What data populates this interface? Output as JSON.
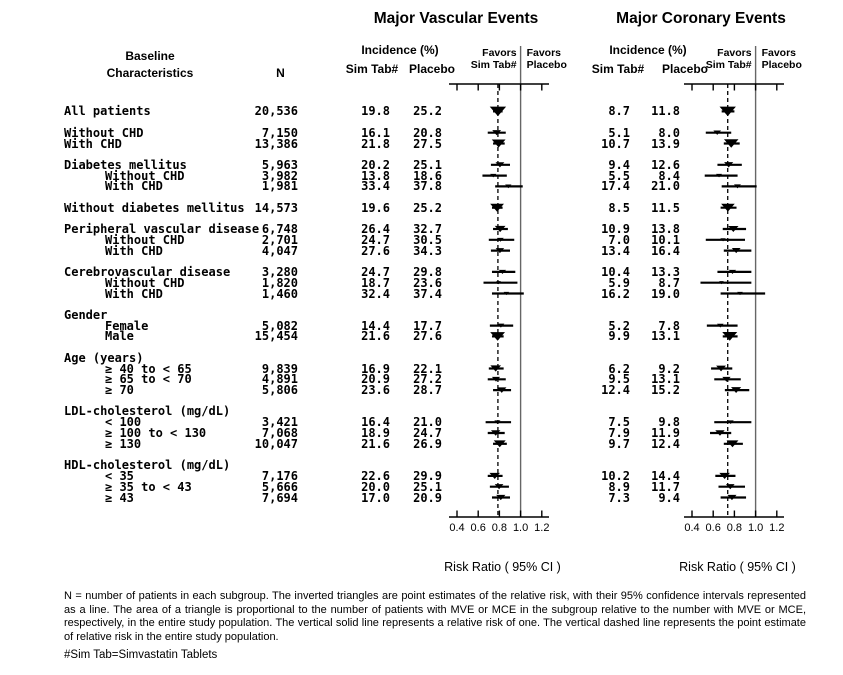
{
  "titles": {
    "vascular": "Major Vascular Events",
    "coronary": "Major Coronary Events"
  },
  "column_headers": {
    "baseline_line1": "Baseline",
    "baseline_line2": "Characteristics",
    "n": "N",
    "incidence": "Incidence (%)",
    "sim_tab": "Sim Tab#",
    "placebo": "Placebo",
    "favors": "Favors"
  },
  "colors": {
    "text": "#000000",
    "reference_line": "#666666",
    "marks": "#000000"
  },
  "chart_data": {
    "type": "forest",
    "plots": [
      "Major Vascular Events",
      "Major Coronary Events"
    ],
    "axis": {
      "xlim": [
        0.4,
        1.2
      ],
      "tick_values": [
        0.4,
        0.6,
        0.8,
        1.0,
        1.2
      ],
      "tick_labels": [
        "0.4",
        "0.6",
        "0.8",
        "1.0",
        "1.2"
      ],
      "xlabel": "Risk Ratio ( 95% CI )",
      "solid_reference": 1.0,
      "overall_rr": {
        "vascular": 0.786,
        "coronary": 0.737
      }
    },
    "groups": [
      {
        "rows": [
          {
            "label": "All patients",
            "indent": 0,
            "n": "20,536",
            "vascular": {
              "sim": "19.8",
              "pbo": "25.2",
              "rr": 0.786,
              "ci": [
                0.74,
                0.83
              ],
              "weight": 1.0
            },
            "coronary": {
              "sim": "8.7",
              "pbo": "11.8",
              "rr": 0.737,
              "ci": [
                0.68,
                0.8
              ],
              "weight": 1.0
            }
          }
        ]
      },
      {
        "rows": [
          {
            "label": "Without CHD",
            "indent": 0,
            "n": "7,150",
            "vascular": {
              "sim": "16.1",
              "pbo": "20.8",
              "rr": 0.774,
              "ci": [
                0.69,
                0.86
              ],
              "weight": 0.29
            },
            "coronary": {
              "sim": "5.1",
              "pbo": "8.0",
              "rr": 0.638,
              "ci": [
                0.53,
                0.77
              ],
              "weight": 0.22
            }
          },
          {
            "label": "With CHD",
            "indent": 0,
            "n": "13,386",
            "vascular": {
              "sim": "21.8",
              "pbo": "27.5",
              "rr": 0.793,
              "ci": [
                0.74,
                0.85
              ],
              "weight": 0.71
            },
            "coronary": {
              "sim": "10.7",
              "pbo": "13.9",
              "rr": 0.77,
              "ci": [
                0.7,
                0.85
              ],
              "weight": 0.78
            }
          }
        ]
      },
      {
        "rows": [
          {
            "label": "Diabetes mellitus",
            "indent": 0,
            "n": "5,963",
            "vascular": {
              "sim": "20.2",
              "pbo": "25.1",
              "rr": 0.805,
              "ci": [
                0.72,
                0.9
              ],
              "weight": 0.29
            },
            "coronary": {
              "sim": "9.4",
              "pbo": "12.6",
              "rr": 0.746,
              "ci": [
                0.64,
                0.87
              ],
              "weight": 0.31
            }
          },
          {
            "label": "Without CHD",
            "indent": 1,
            "n": "3,982",
            "vascular": {
              "sim": "13.8",
              "pbo": "18.6",
              "rr": 0.742,
              "ci": [
                0.64,
                0.87
              ],
              "weight": 0.14
            },
            "coronary": {
              "sim": "5.5",
              "pbo": "8.4",
              "rr": 0.655,
              "ci": [
                0.52,
                0.83
              ],
              "weight": 0.13
            }
          },
          {
            "label": "With CHD",
            "indent": 1,
            "n": "1,981",
            "vascular": {
              "sim": "33.4",
              "pbo": "37.8",
              "rr": 0.884,
              "ci": [
                0.76,
                1.02
              ],
              "weight": 0.15
            },
            "coronary": {
              "sim": "17.4",
              "pbo": "21.0",
              "rr": 0.829,
              "ci": [
                0.68,
                1.01
              ],
              "weight": 0.18
            }
          }
        ]
      },
      {
        "rows": [
          {
            "label": "Without diabetes mellitus",
            "indent": 0,
            "n": "14,573",
            "vascular": {
              "sim": "19.6",
              "pbo": "25.2",
              "rr": 0.778,
              "ci": [
                0.73,
                0.83
              ],
              "weight": 0.71
            },
            "coronary": {
              "sim": "8.5",
              "pbo": "11.5",
              "rr": 0.739,
              "ci": [
                0.67,
                0.82
              ],
              "weight": 0.69
            }
          }
        ]
      },
      {
        "rows": [
          {
            "label": "Peripheral vascular disease",
            "indent": 0,
            "n": "6,748",
            "vascular": {
              "sim": "26.4",
              "pbo": "32.7",
              "rr": 0.807,
              "ci": [
                0.74,
                0.88
              ],
              "weight": 0.43
            },
            "coronary": {
              "sim": "10.9",
              "pbo": "13.8",
              "rr": 0.79,
              "ci": [
                0.69,
                0.91
              ],
              "weight": 0.4
            }
          },
          {
            "label": "Without CHD",
            "indent": 1,
            "n": "2,701",
            "vascular": {
              "sim": "24.7",
              "pbo": "30.5",
              "rr": 0.81,
              "ci": [
                0.7,
                0.94
              ],
              "weight": 0.16
            },
            "coronary": {
              "sim": "7.0",
              "pbo": "10.1",
              "rr": 0.693,
              "ci": [
                0.53,
                0.9
              ],
              "weight": 0.11
            }
          },
          {
            "label": "With CHD",
            "indent": 1,
            "n": "4,047",
            "vascular": {
              "sim": "27.6",
              "pbo": "34.3",
              "rr": 0.805,
              "ci": [
                0.72,
                0.9
              ],
              "weight": 0.27
            },
            "coronary": {
              "sim": "13.4",
              "pbo": "16.4",
              "rr": 0.817,
              "ci": [
                0.7,
                0.96
              ],
              "weight": 0.29
            }
          }
        ]
      },
      {
        "rows": [
          {
            "label": "Cerebrovascular disease",
            "indent": 0,
            "n": "3,280",
            "vascular": {
              "sim": "24.7",
              "pbo": "29.8",
              "rr": 0.829,
              "ci": [
                0.73,
                0.95
              ],
              "weight": 0.19
            },
            "coronary": {
              "sim": "10.4",
              "pbo": "13.3",
              "rr": 0.782,
              "ci": [
                0.64,
                0.96
              ],
              "weight": 0.19
            }
          },
          {
            "label": "Without CHD",
            "indent": 1,
            "n": "1,820",
            "vascular": {
              "sim": "18.7",
              "pbo": "23.6",
              "rr": 0.792,
              "ci": [
                0.65,
                0.97
              ],
              "weight": 0.08
            },
            "coronary": {
              "sim": "5.9",
              "pbo": "8.7",
              "rr": 0.678,
              "ci": [
                0.48,
                0.96
              ],
              "weight": 0.06
            }
          },
          {
            "label": "With CHD",
            "indent": 1,
            "n": "1,460",
            "vascular": {
              "sim": "32.4",
              "pbo": "37.4",
              "rr": 0.866,
              "ci": [
                0.73,
                1.03
              ],
              "weight": 0.11
            },
            "coronary": {
              "sim": "16.2",
              "pbo": "19.0",
              "rr": 0.853,
              "ci": [
                0.67,
                1.09
              ],
              "weight": 0.12
            }
          }
        ]
      },
      {
        "rows": [
          {
            "label": "Gender",
            "indent": 0,
            "header": true
          },
          {
            "label": "Female",
            "indent": 1,
            "n": "5,082",
            "vascular": {
              "sim": "14.4",
              "pbo": "17.7",
              "rr": 0.814,
              "ci": [
                0.71,
                0.93
              ],
              "weight": 0.18
            },
            "coronary": {
              "sim": "5.2",
              "pbo": "7.8",
              "rr": 0.667,
              "ci": [
                0.54,
                0.83
              ],
              "weight": 0.16
            }
          },
          {
            "label": "Male",
            "indent": 1,
            "n": "15,454",
            "vascular": {
              "sim": "21.6",
              "pbo": "27.6",
              "rr": 0.783,
              "ci": [
                0.73,
                0.84
              ],
              "weight": 0.82
            },
            "coronary": {
              "sim": "9.9",
              "pbo": "13.1",
              "rr": 0.756,
              "ci": [
                0.69,
                0.83
              ],
              "weight": 0.84
            }
          }
        ]
      },
      {
        "rows": [
          {
            "label": "Age (years)",
            "indent": 0,
            "header": true
          },
          {
            "label": "≥ 40 to < 65",
            "indent": 1,
            "n": "9,839",
            "vascular": {
              "sim": "16.9",
              "pbo": "22.1",
              "rr": 0.765,
              "ci": [
                0.7,
                0.84
              ],
              "weight": 0.42
            },
            "coronary": {
              "sim": "6.2",
              "pbo": "9.2",
              "rr": 0.674,
              "ci": [
                0.58,
                0.78
              ],
              "weight": 0.36
            }
          },
          {
            "label": "≥ 65 to < 70",
            "indent": 1,
            "n": "4,891",
            "vascular": {
              "sim": "20.9",
              "pbo": "27.2",
              "rr": 0.768,
              "ci": [
                0.69,
                0.86
              ],
              "weight": 0.25
            },
            "coronary": {
              "sim": "9.5",
              "pbo": "13.1",
              "rr": 0.725,
              "ci": [
                0.61,
                0.86
              ],
              "weight": 0.26
            }
          },
          {
            "label": "≥ 70",
            "indent": 1,
            "n": "5,806",
            "vascular": {
              "sim": "23.6",
              "pbo": "28.7",
              "rr": 0.822,
              "ci": [
                0.74,
                0.91
              ],
              "weight": 0.33
            },
            "coronary": {
              "sim": "12.4",
              "pbo": "15.2",
              "rr": 0.816,
              "ci": [
                0.71,
                0.94
              ],
              "weight": 0.38
            }
          }
        ]
      },
      {
        "rows": [
          {
            "label": "LDL-cholesterol (mg/dL)",
            "indent": 0,
            "header": true
          },
          {
            "label": "< 100",
            "indent": 1,
            "n": "3,421",
            "vascular": {
              "sim": "16.4",
              "pbo": "21.0",
              "rr": 0.781,
              "ci": [
                0.67,
                0.91
              ],
              "weight": 0.14
            },
            "coronary": {
              "sim": "7.5",
              "pbo": "9.8",
              "rr": 0.765,
              "ci": [
                0.61,
                0.96
              ],
              "weight": 0.14
            }
          },
          {
            "label": "≥ 100 to < 130",
            "indent": 1,
            "n": "7,068",
            "vascular": {
              "sim": "18.9",
              "pbo": "24.7",
              "rr": 0.765,
              "ci": [
                0.69,
                0.85
              ],
              "weight": 0.33
            },
            "coronary": {
              "sim": "7.9",
              "pbo": "11.9",
              "rr": 0.664,
              "ci": [
                0.57,
                0.77
              ],
              "weight": 0.33
            }
          },
          {
            "label": "≥ 130",
            "indent": 1,
            "n": "10,047",
            "vascular": {
              "sim": "21.6",
              "pbo": "26.9",
              "rr": 0.803,
              "ci": [
                0.74,
                0.87
              ],
              "weight": 0.53
            },
            "coronary": {
              "sim": "9.7",
              "pbo": "12.4",
              "rr": 0.782,
              "ci": [
                0.7,
                0.88
              ],
              "weight": 0.53
            }
          }
        ]
      },
      {
        "rows": [
          {
            "label": "HDL-cholesterol (mg/dL)",
            "indent": 0,
            "header": true
          },
          {
            "label": "< 35",
            "indent": 1,
            "n": "7,176",
            "vascular": {
              "sim": "22.6",
              "pbo": "29.9",
              "rr": 0.756,
              "ci": [
                0.69,
                0.83
              ],
              "weight": 0.41
            },
            "coronary": {
              "sim": "10.2",
              "pbo": "14.4",
              "rr": 0.708,
              "ci": [
                0.62,
                0.81
              ],
              "weight": 0.42
            }
          },
          {
            "label": "≥ 35 to < 43",
            "indent": 1,
            "n": "5,666",
            "vascular": {
              "sim": "20.0",
              "pbo": "25.1",
              "rr": 0.797,
              "ci": [
                0.71,
                0.89
              ],
              "weight": 0.28
            },
            "coronary": {
              "sim": "8.9",
              "pbo": "11.7",
              "rr": 0.761,
              "ci": [
                0.65,
                0.9
              ],
              "weight": 0.28
            }
          },
          {
            "label": "≥ 43",
            "indent": 1,
            "n": "7,694",
            "vascular": {
              "sim": "17.0",
              "pbo": "20.9",
              "rr": 0.813,
              "ci": [
                0.73,
                0.9
              ],
              "weight": 0.32
            },
            "coronary": {
              "sim": "7.3",
              "pbo": "9.4",
              "rr": 0.777,
              "ci": [
                0.67,
                0.91
              ],
              "weight": 0.31
            }
          }
        ]
      }
    ]
  },
  "footnote": "N = number of patients in each subgroup. The inverted triangles are point estimates of the relative risk, with their 95% confidence intervals represented as a line. The area of a triangle is proportional to the number of patients with MVE or MCE in the subgroup relative to the number with MVE or MCE, respectively, in the entire study population. The vertical solid line represents a relative risk of one. The vertical dashed line represents the point estimate of relative risk in the entire study population.",
  "legend_note": "#Sim Tab=Simvastatin Tablets"
}
